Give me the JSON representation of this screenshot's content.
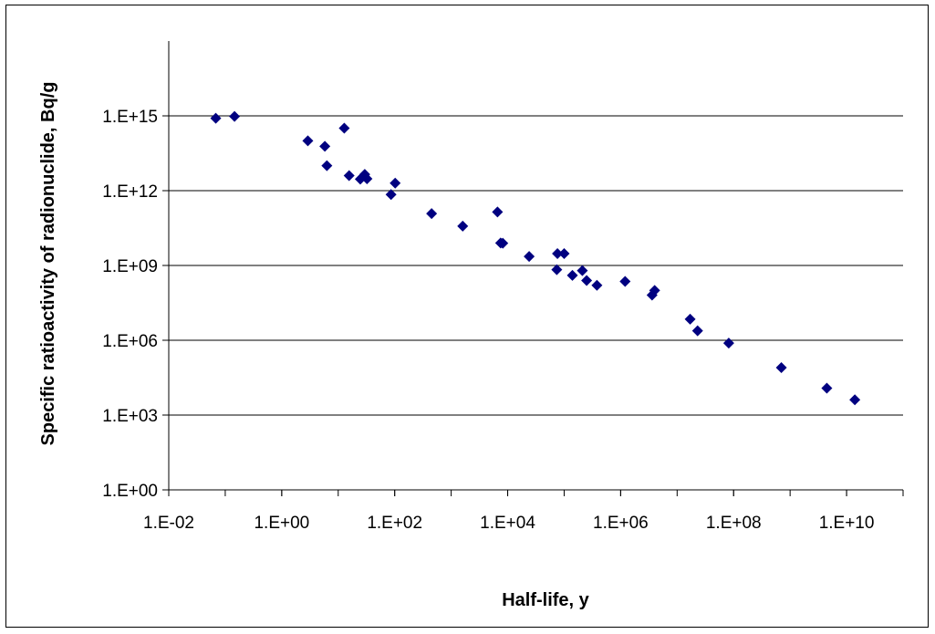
{
  "chart_data": {
    "type": "scatter",
    "title": "",
    "xlabel": "Half-life, y",
    "ylabel": "Specific ratioactivity of radionuclide, Bq/g",
    "x_scale": "log",
    "y_scale": "log",
    "xlim": [
      0.01,
      100000000000
    ],
    "ylim": [
      1,
      1000000000000000000
    ],
    "x_ticks": [
      0.01,
      1,
      100,
      10000,
      1000000,
      100000000,
      10000000000
    ],
    "x_tick_labels": [
      "1.E-02",
      "1.E+00",
      "1.E+02",
      "1.E+04",
      "1.E+06",
      "1.E+08",
      "1.E+10"
    ],
    "y_ticks": [
      1,
      1000,
      1000000,
      1000000000,
      1000000000000,
      1000000000000000
    ],
    "y_tick_labels": [
      "1.E+00",
      "1.E+03",
      "1.E+06",
      "1.E+09",
      "1.E+12",
      "1.E+15"
    ],
    "grid": "horizontal",
    "marker": "diamond",
    "marker_color": "#000080",
    "series": [
      {
        "points": [
          [
            0.068,
            800000000000000
          ],
          [
            0.146,
            950000000000000
          ],
          [
            2.9,
            100000000000000
          ],
          [
            5.8,
            60000000000000
          ],
          [
            6.3,
            10000000000000
          ],
          [
            12.8,
            320000000000000
          ],
          [
            15.6,
            4000000000000
          ],
          [
            24.6,
            2900000000000
          ],
          [
            29.5,
            4500000000000
          ],
          [
            32.3,
            3000000000000
          ],
          [
            86.2,
            700000000000
          ],
          [
            102,
            2000000000000
          ],
          [
            450,
            120000000000
          ],
          [
            1600,
            38000000000
          ],
          [
            6600,
            140000000000
          ],
          [
            7500,
            8000000000
          ],
          [
            8200,
            7800000000
          ],
          [
            24000,
            2300000000
          ],
          [
            74000,
            680000000
          ],
          [
            76000,
            3000000000
          ],
          [
            100000,
            3000000000
          ],
          [
            140000,
            400000000
          ],
          [
            210000,
            620000000
          ],
          [
            250000,
            250000000
          ],
          [
            380000,
            160000000
          ],
          [
            1200000,
            230000000
          ],
          [
            3600000,
            65000000
          ],
          [
            4000000,
            100000000
          ],
          [
            17000000,
            7000000
          ],
          [
            23000000,
            2400000
          ],
          [
            82000000,
            770000
          ],
          [
            700000000,
            80000
          ],
          [
            4470000000,
            12000
          ],
          [
            14000000000,
            4100
          ]
        ]
      }
    ]
  }
}
